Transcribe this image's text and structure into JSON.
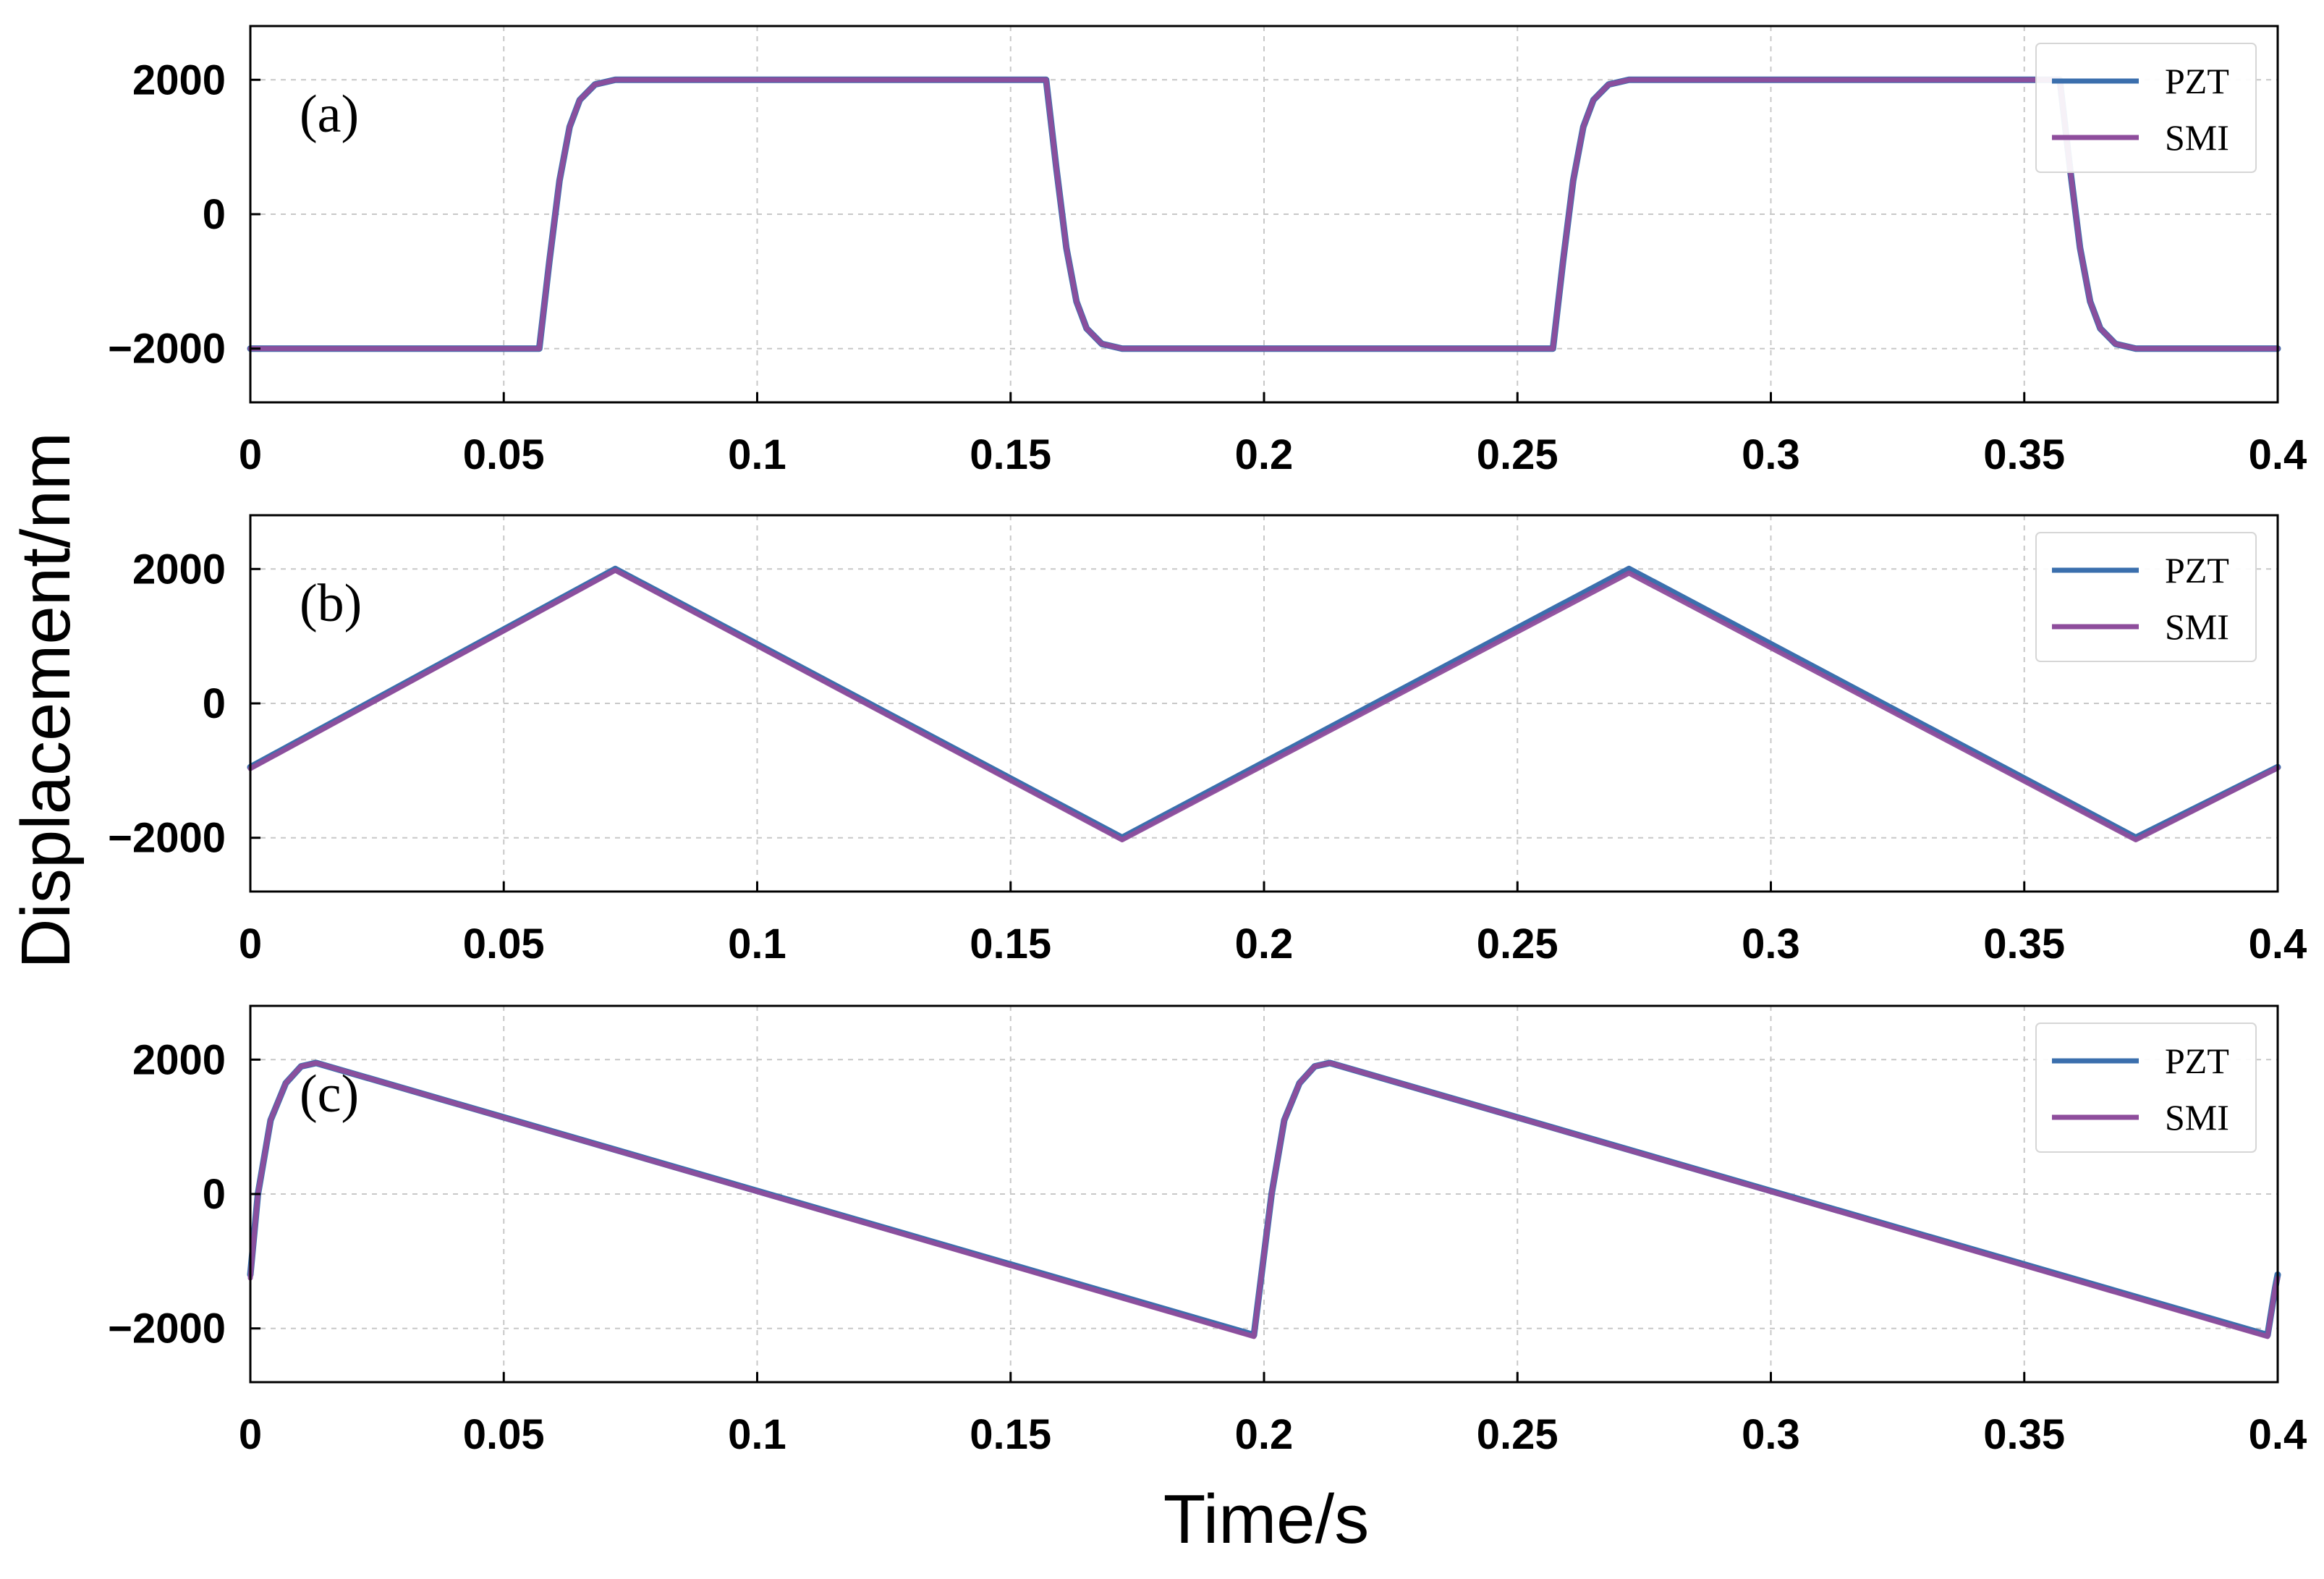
{
  "figure": {
    "ylabel": "Displacement/nm",
    "xlabel": "Time/s"
  },
  "chart_data": [
    {
      "type": "line",
      "panel_label": "(a)",
      "xlim": [
        0,
        0.4
      ],
      "ylim": [
        -2800,
        2800
      ],
      "x_ticks": [
        "0",
        "0.05",
        "0.1",
        "0.15",
        "0.2",
        "0.25",
        "0.3",
        "0.35",
        "0.4"
      ],
      "y_ticks": [
        "2000",
        "0",
        "−2000"
      ],
      "grid": true,
      "legend_position": "top-right",
      "series": [
        {
          "name": "PZT",
          "color": "#3b6fad",
          "x": [
            0,
            0.057,
            0.059,
            0.061,
            0.063,
            0.065,
            0.068,
            0.072,
            0.157,
            0.159,
            0.161,
            0.163,
            0.165,
            0.168,
            0.172,
            0.18,
            0.257,
            0.259,
            0.261,
            0.263,
            0.265,
            0.268,
            0.272,
            0.357,
            0.359,
            0.361,
            0.363,
            0.365,
            0.368,
            0.372,
            0.38,
            0.4
          ],
          "y": [
            -2000,
            -2000,
            -700,
            500,
            1300,
            1700,
            1930,
            2000,
            2000,
            700,
            -500,
            -1300,
            -1700,
            -1930,
            -2000,
            -2000,
            -2000,
            -700,
            500,
            1300,
            1700,
            1930,
            2000,
            2000,
            700,
            -500,
            -1300,
            -1700,
            -1930,
            -2000,
            -2000,
            -2000
          ]
        },
        {
          "name": "SMI",
          "color": "#8e4d9c",
          "x": [
            0,
            0.057,
            0.059,
            0.061,
            0.063,
            0.065,
            0.068,
            0.072,
            0.157,
            0.159,
            0.161,
            0.163,
            0.165,
            0.168,
            0.172,
            0.18,
            0.257,
            0.259,
            0.261,
            0.263,
            0.265,
            0.268,
            0.272,
            0.357,
            0.359,
            0.361,
            0.363,
            0.365,
            0.368,
            0.372,
            0.38,
            0.4
          ],
          "y": [
            -2000,
            -2000,
            -700,
            500,
            1300,
            1700,
            1930,
            2000,
            2000,
            700,
            -500,
            -1300,
            -1700,
            -1930,
            -2000,
            -2000,
            -2000,
            -700,
            500,
            1300,
            1700,
            1930,
            2000,
            2000,
            700,
            -500,
            -1300,
            -1700,
            -1930,
            -2000,
            -2000,
            -2000
          ]
        }
      ]
    },
    {
      "type": "line",
      "panel_label": "(b)",
      "xlim": [
        0,
        0.4
      ],
      "ylim": [
        -2800,
        2800
      ],
      "x_ticks": [
        "0",
        "0.05",
        "0.1",
        "0.15",
        "0.2",
        "0.25",
        "0.3",
        "0.35",
        "0.4"
      ],
      "y_ticks": [
        "2000",
        "0",
        "−2000"
      ],
      "grid": true,
      "legend_position": "top-right",
      "series": [
        {
          "name": "PZT",
          "color": "#3b6fad",
          "x": [
            0,
            0.072,
            0.172,
            0.272,
            0.372,
            0.4
          ],
          "y": [
            -950,
            2000,
            -2000,
            2000,
            -2000,
            -950
          ]
        },
        {
          "name": "SMI",
          "color": "#8e4d9c",
          "x": [
            0,
            0.072,
            0.172,
            0.272,
            0.372,
            0.4
          ],
          "y": [
            -970,
            1980,
            -2030,
            1940,
            -2030,
            -960
          ]
        }
      ]
    },
    {
      "type": "line",
      "panel_label": "(c)",
      "xlim": [
        0,
        0.4
      ],
      "ylim": [
        -2800,
        2800
      ],
      "x_ticks": [
        "0",
        "0.05",
        "0.1",
        "0.15",
        "0.2",
        "0.25",
        "0.3",
        "0.35",
        "0.4"
      ],
      "y_ticks": [
        "2000",
        "0",
        "−2000"
      ],
      "grid": true,
      "legend_position": "top-right",
      "series": [
        {
          "name": "PZT",
          "color": "#3b6fad",
          "x": [
            0,
            0.0015,
            0.004,
            0.007,
            0.01,
            0.013,
            0.198,
            0.1995,
            0.2015,
            0.204,
            0.207,
            0.21,
            0.213,
            0.398,
            0.3995,
            0.4
          ],
          "y": [
            -1200,
            0,
            1100,
            1650,
            1900,
            1950,
            -2100,
            -1200,
            0,
            1100,
            1650,
            1900,
            1950,
            -2100,
            -1400,
            -1200
          ]
        },
        {
          "name": "SMI",
          "color": "#8e4d9c",
          "x": [
            0,
            0.0015,
            0.004,
            0.007,
            0.01,
            0.013,
            0.198,
            0.1995,
            0.2015,
            0.204,
            0.207,
            0.21,
            0.213,
            0.398,
            0.3995,
            0.4
          ],
          "y": [
            -1250,
            0,
            1100,
            1650,
            1900,
            1950,
            -2120,
            -1200,
            0,
            1100,
            1650,
            1900,
            1950,
            -2120,
            -1400,
            -1250
          ]
        }
      ]
    }
  ]
}
